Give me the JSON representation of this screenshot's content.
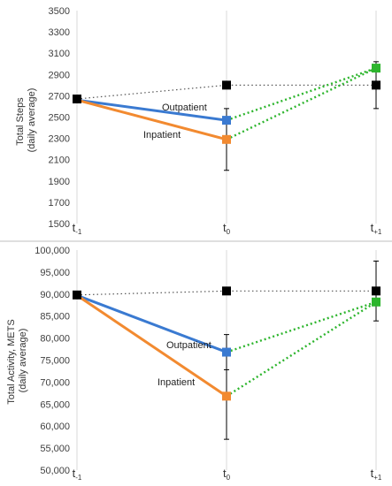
{
  "chart_data": [
    {
      "type": "line",
      "ylabel_lines": [
        "Total Steps",
        "(daily average)"
      ],
      "ylim": [
        1500,
        3500
      ],
      "yticks": [
        "1500",
        "1700",
        "1900",
        "2100",
        "2300",
        "2500",
        "2700",
        "2900",
        "3100",
        "3300",
        "3500"
      ],
      "x_ticks": [
        {
          "base": "t",
          "sub": "-1"
        },
        {
          "base": "t",
          "sub": "0"
        },
        {
          "base": "t",
          "sub": "+1"
        }
      ],
      "grid": "vertical",
      "series": [
        {
          "name": "",
          "role": "control",
          "color": "#000000",
          "values": [
            2670,
            2800,
            2800
          ],
          "error_bars": [
            null,
            null,
            220
          ]
        },
        {
          "name": "Outpatient",
          "color": "#3a7ad1",
          "values": [
            2660,
            2470,
            null
          ],
          "error_bars": [
            null,
            null,
            null
          ]
        },
        {
          "name": "Inpatient",
          "color": "#f28a30",
          "values": [
            2660,
            2290,
            null
          ],
          "error_bars": [
            null,
            290,
            null
          ]
        },
        {
          "role": "projection",
          "color": "#2db52d",
          "from": [
            2470,
            2290
          ],
          "to": 2960
        }
      ],
      "annotations": [
        "Outpatient",
        "Inpatient"
      ]
    },
    {
      "type": "line",
      "ylabel_lines": [
        "Total Activity, METS",
        "(daily average)"
      ],
      "ylim": [
        50000,
        100000
      ],
      "yticks": [
        "50,000",
        "55,000",
        "60,000",
        "65,000",
        "70,000",
        "75,000",
        "80,000",
        "85,000",
        "90,000",
        "95,000",
        "100,000"
      ],
      "x_ticks": [
        {
          "base": "t",
          "sub": "-1"
        },
        {
          "base": "t",
          "sub": "0"
        },
        {
          "base": "t",
          "sub": "+1"
        }
      ],
      "grid": "vertical",
      "series": [
        {
          "name": "",
          "role": "control",
          "color": "#000000",
          "values": [
            89800,
            90700,
            90700
          ],
          "error_bars": [
            null,
            null,
            6800
          ]
        },
        {
          "name": "Outpatient",
          "color": "#3a7ad1",
          "values": [
            89700,
            76800,
            null
          ],
          "error_bars": [
            null,
            4000,
            null
          ]
        },
        {
          "name": "Inpatient",
          "color": "#f28a30",
          "values": [
            89700,
            66800,
            null
          ],
          "error_bars": [
            null,
            9800,
            null
          ]
        },
        {
          "role": "projection",
          "color": "#2db52d",
          "from": [
            76800,
            66800
          ],
          "to": 88200
        }
      ],
      "annotations": [
        "Outpatient",
        "Inpatient"
      ]
    }
  ]
}
